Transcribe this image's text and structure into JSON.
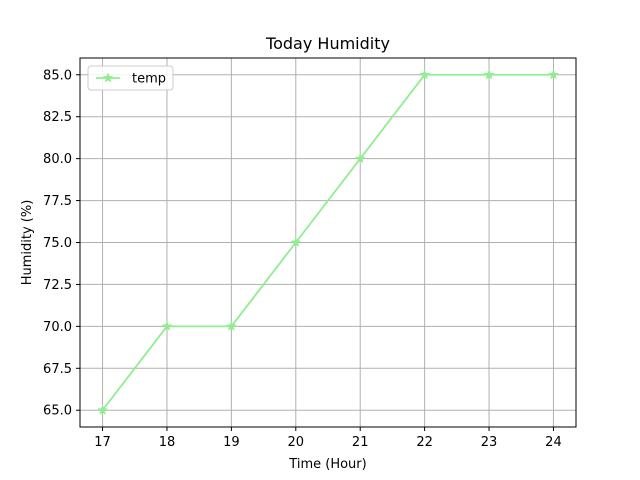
{
  "chart_data": {
    "type": "line",
    "title": "Today Humidity",
    "xlabel": "Time (Hour)",
    "ylabel": "Humidity (%)",
    "x": [
      17,
      18,
      19,
      20,
      21,
      22,
      23,
      24
    ],
    "series": [
      {
        "name": "temp",
        "values": [
          65.0,
          70.0,
          70.0,
          75.0,
          80.0,
          85.0,
          85.0,
          85.0
        ],
        "color": "#90ee90",
        "marker": "star"
      }
    ],
    "xlim": [
      16.65,
      24.35
    ],
    "ylim": [
      64.0,
      86.0
    ],
    "xticks": [
      17,
      18,
      19,
      20,
      21,
      22,
      23,
      24
    ],
    "yticks": [
      65.0,
      67.5,
      70.0,
      72.5,
      75.0,
      77.5,
      80.0,
      82.5,
      85.0
    ],
    "ytick_labels": [
      "65.0",
      "67.5",
      "70.0",
      "72.5",
      "75.0",
      "77.5",
      "80.0",
      "82.5",
      "85.0"
    ],
    "grid": true,
    "legend_position": "upper-left"
  }
}
